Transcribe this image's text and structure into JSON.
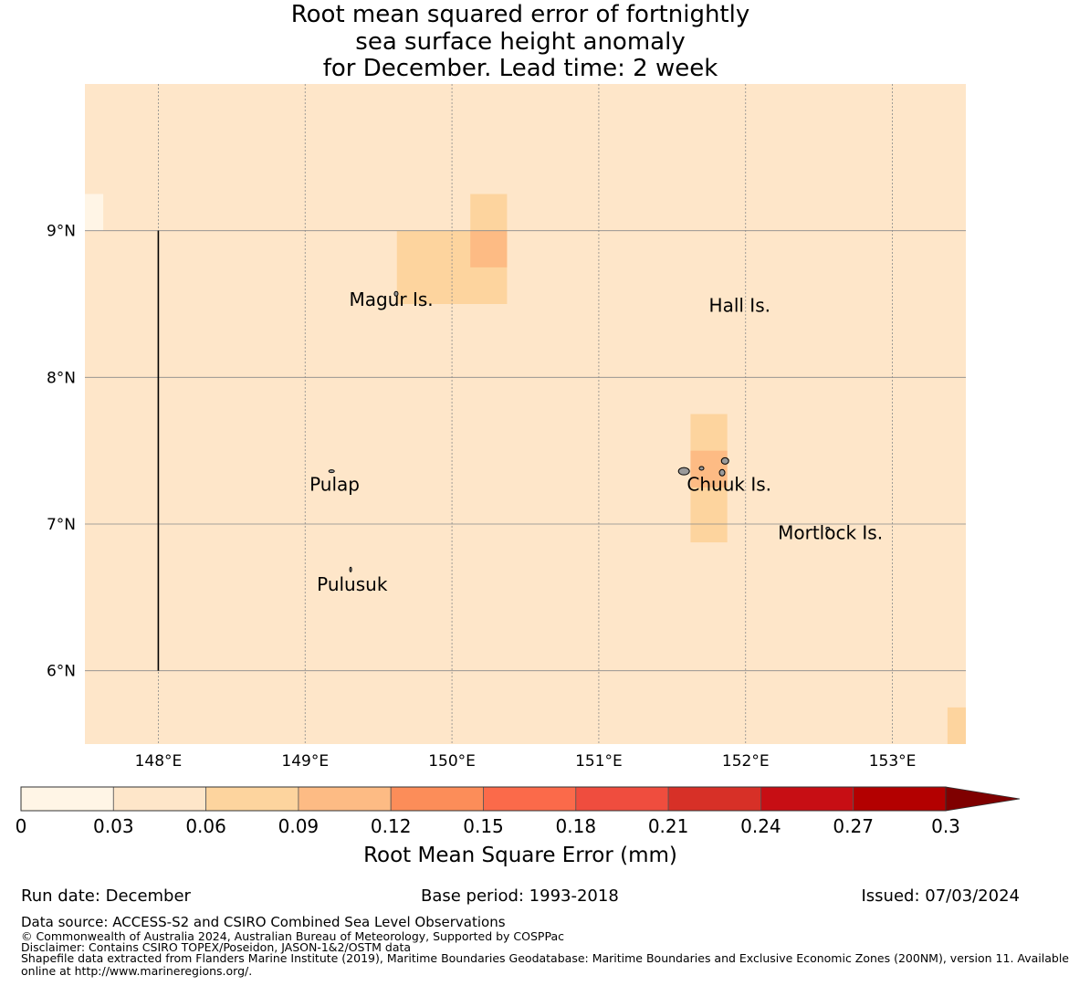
{
  "title": {
    "line1": "Root mean squared error of fortnightly",
    "line2": "sea surface height anomaly",
    "line3": "for December. Lead time: 2 week"
  },
  "map": {
    "lon_range": [
      147.5,
      153.5
    ],
    "lat_range": [
      5.5,
      10.0
    ],
    "x_ticks": [
      148,
      149,
      150,
      151,
      152,
      153
    ],
    "x_tick_labels": [
      "148°E",
      "149°E",
      "150°E",
      "151°E",
      "152°E",
      "153°E"
    ],
    "y_ticks": [
      9,
      8,
      7,
      6
    ],
    "y_tick_labels": [
      "9°N",
      "8°N",
      "7°N",
      "6°N"
    ],
    "background_value": 0.04,
    "cells": [
      {
        "lon0": 147.5,
        "lon1": 147.625,
        "lat0": 9.0,
        "lat1": 9.25,
        "value": 0.02
      },
      {
        "lon0": 149.625,
        "lon1": 150.375,
        "lat0": 8.5,
        "lat1": 9.0,
        "value": 0.07
      },
      {
        "lon0": 150.125,
        "lon1": 150.375,
        "lat0": 9.0,
        "lat1": 9.25,
        "value": 0.07
      },
      {
        "lon0": 150.125,
        "lon1": 150.375,
        "lat0": 8.75,
        "lat1": 9.0,
        "value": 0.1
      },
      {
        "lon0": 151.625,
        "lon1": 151.875,
        "lat0": 6.875,
        "lat1": 7.75,
        "value": 0.07
      },
      {
        "lon0": 151.625,
        "lon1": 151.875,
        "lat0": 7.25,
        "lat1": 7.5,
        "value": 0.1
      },
      {
        "lon0": 153.375,
        "lon1": 153.5,
        "lat0": 5.5,
        "lat1": 5.75,
        "value": 0.07
      }
    ],
    "boundary_line": {
      "lon": 148.0,
      "lat_from": 6.0,
      "lat_to": 9.0
    },
    "places": [
      {
        "name": "Magur Is.",
        "lon": 149.3,
        "lat": 8.53
      },
      {
        "name": "Hall Is.",
        "lon": 151.75,
        "lat": 8.49
      },
      {
        "name": "Pulap",
        "lon": 149.03,
        "lat": 7.27
      },
      {
        "name": "Chuuk Is.",
        "lon": 151.6,
        "lat": 7.27
      },
      {
        "name": "Mortlock Is.",
        "lon": 152.22,
        "lat": 6.94
      },
      {
        "name": "Pulusuk",
        "lon": 149.08,
        "lat": 6.59
      }
    ]
  },
  "colorbar": {
    "label": "Root Mean Square Error (mm)",
    "bounds": [
      0,
      0.03,
      0.06,
      0.09,
      0.12,
      0.15,
      0.18,
      0.21,
      0.24,
      0.27,
      0.3
    ],
    "tick_labels": [
      "0",
      "0.03",
      "0.06",
      "0.09",
      "0.12",
      "0.15",
      "0.18",
      "0.21",
      "0.24",
      "0.27",
      "0.3"
    ],
    "colors": [
      "#fff5e6",
      "#fee6c9",
      "#fdd49e",
      "#fdbb84",
      "#fc8d59",
      "#fb6a4a",
      "#ef4d3e",
      "#d73027",
      "#c70e14",
      "#b30000"
    ],
    "extend_color": "#7f0000"
  },
  "footer": {
    "run_date": "Run date: December",
    "base_period": "Base period: 1993-2018",
    "issued": "Issued: 07/03/2024",
    "data_source": "Data source: ACCESS-S2 and CSIRO Combined Sea Level Observations",
    "copyright": "© Commonwealth of Australia 2024, Australian Bureau of Meteorology, Supported by COSPPac",
    "disclaimer": "Disclaimer: Contains CSIRO TOPEX/Poseidon, JASON-1&2/OSTM data",
    "shapefile_line1": "Shapefile data extracted from Flanders Marine Institute (2019), Maritime Boundaries Geodatabase: Maritime Boundaries and Exclusive Economic Zones (200NM), version 11. Available",
    "shapefile_line2": "online at http://www.marineregions.org/."
  }
}
